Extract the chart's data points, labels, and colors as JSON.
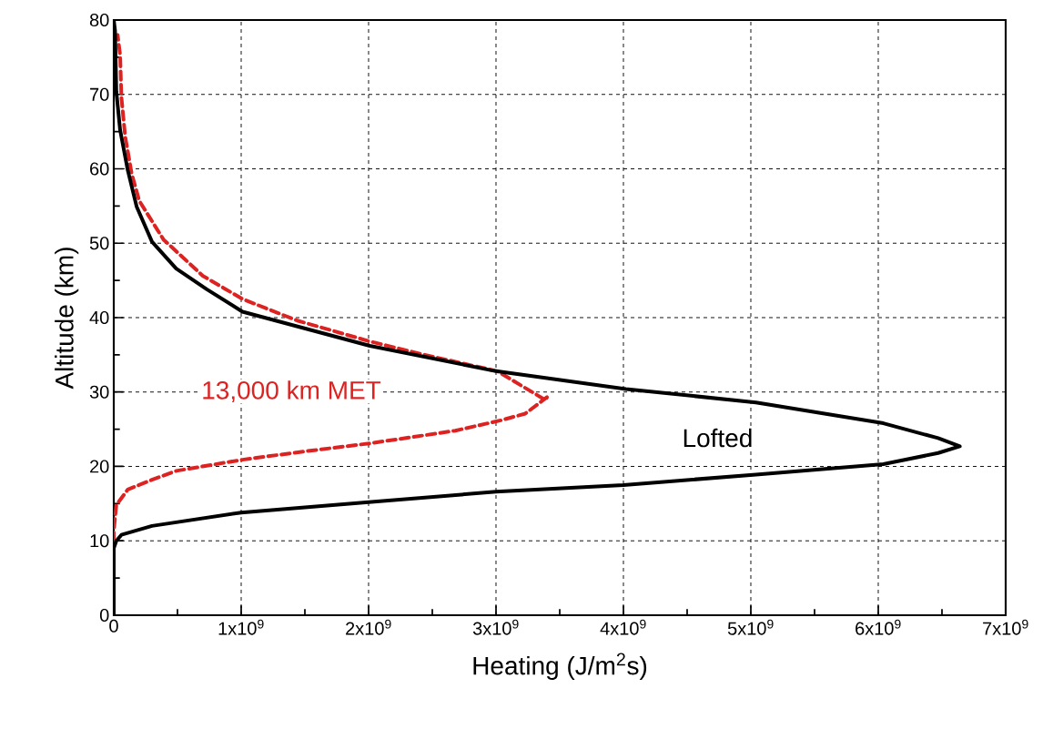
{
  "chart_data": {
    "type": "line",
    "xlabel": "Heating (J/m$^{2}$s)",
    "ylabel": "Altitude (km)",
    "series": [
      {
        "name": "13,000 km MET",
        "color": "#dd2222",
        "line_style": "dashed",
        "x": [
          0,
          0,
          20000000.0,
          110000000.0,
          300000000.0,
          490000000.0,
          1010000000.0,
          1490000000.0,
          2010000000.0,
          2680000000.0,
          3040000000.0,
          3230000000.0,
          3400000000.0,
          3390000000.0,
          3010000000.0,
          2440000000.0,
          2010000000.0,
          1440000000.0,
          1010000000.0,
          700000000.0,
          390000000.0,
          200000000.0,
          140000000.0,
          90000000.0,
          60000000.0,
          50000000.0,
          30000000.0
        ],
        "values": [
          10,
          11.4,
          14.8,
          16.9,
          18.2,
          19.4,
          20.9,
          22.0,
          23.1,
          24.8,
          26.2,
          27.1,
          29.3,
          28.9,
          32.8,
          35.0,
          36.8,
          39.6,
          42.5,
          45.6,
          50.5,
          55.7,
          59.4,
          64.3,
          69.6,
          75.3,
          78
        ]
      },
      {
        "name": "Lofted",
        "color": "#000000",
        "line_style": "solid",
        "x": [
          0,
          0,
          20000000.0,
          60000000.0,
          300000000.0,
          1000000000.0,
          2000000000.0,
          3000000000.0,
          4000000000.0,
          5040000000.0,
          6040000000.0,
          6470000000.0,
          6640000000.0,
          6470000000.0,
          6040000000.0,
          5040000000.0,
          4020000000.0,
          3000000000.0,
          2010000000.0,
          1010000000.0,
          730000000.0,
          490000000.0,
          300000000.0,
          180000000.0,
          110000000.0,
          50000000.0,
          20000000.0,
          10000000.0,
          0
        ],
        "values": [
          0,
          9,
          10,
          10.8,
          12,
          13.8,
          15.2,
          16.6,
          17.5,
          18.9,
          20.3,
          21.8,
          22.7,
          23.8,
          25.8,
          28.6,
          30.4,
          32.8,
          36.2,
          40.8,
          43.8,
          46.6,
          50.2,
          54.9,
          59.8,
          65.2,
          70.4,
          78.6,
          80
        ]
      }
    ],
    "xlim": [
      0,
      7000000000.0
    ],
    "ylim": [
      0,
      80
    ],
    "xticks": [
      0,
      {
        "value": 1000000000.0,
        "label": "1x10$^{9}$"
      },
      {
        "value": 2000000000.0,
        "label": "2x10$^{9}$"
      },
      {
        "value": 3000000000.0,
        "label": "3x10$^{9}$"
      },
      {
        "value": 4000000000.0,
        "label": "4x10$^{9}$"
      },
      {
        "value": 5000000000.0,
        "label": "5x10$^{9}$"
      },
      {
        "value": 6000000000.0,
        "label": "6x10$^{9}$"
      },
      {
        "value": 7000000000.0,
        "label": "7x10$^{9}$"
      }
    ],
    "yticks": [
      0,
      10,
      20,
      30,
      40,
      50,
      60,
      70,
      80
    ],
    "grid": true,
    "legend": false,
    "marker": "none"
  }
}
